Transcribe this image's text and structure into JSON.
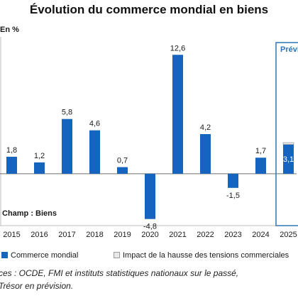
{
  "chart_data": {
    "type": "bar",
    "title": "Évolution du commerce mondial en biens",
    "unit": "En %",
    "categories": [
      "2015",
      "2016",
      "2017",
      "2018",
      "2019",
      "2020",
      "2021",
      "2022",
      "2023",
      "2024",
      "2025"
    ],
    "series": [
      {
        "name": "Commerce mondial",
        "values": [
          1.8,
          1.2,
          5.8,
          4.6,
          0.7,
          -4.8,
          12.6,
          4.2,
          -1.5,
          1.7,
          3.1
        ],
        "color": "#1565c0"
      },
      {
        "name": "Impact de la hausse des tensions commerciales",
        "values": [
          null,
          null,
          null,
          null,
          null,
          null,
          null,
          null,
          null,
          null,
          0.2
        ],
        "color": "#e8e8e8"
      }
    ],
    "data_labels": [
      "1,8",
      "1,2",
      "5,8",
      "4,6",
      "0,7",
      "-4,8",
      "12,6",
      "4,2",
      "-1,5",
      "1,7",
      "3,1"
    ],
    "ylim": [
      -5.5,
      14.5
    ],
    "forecast_label": "Prévis",
    "forecast_from": "2025",
    "annotation": "Champ : Biens",
    "grid": false,
    "legend_position": "bottom"
  },
  "source_lines": [
    "ces : OCDE, FMI et instituts statistiques nationaux sur le passé,",
    "Trésor en prévision."
  ]
}
